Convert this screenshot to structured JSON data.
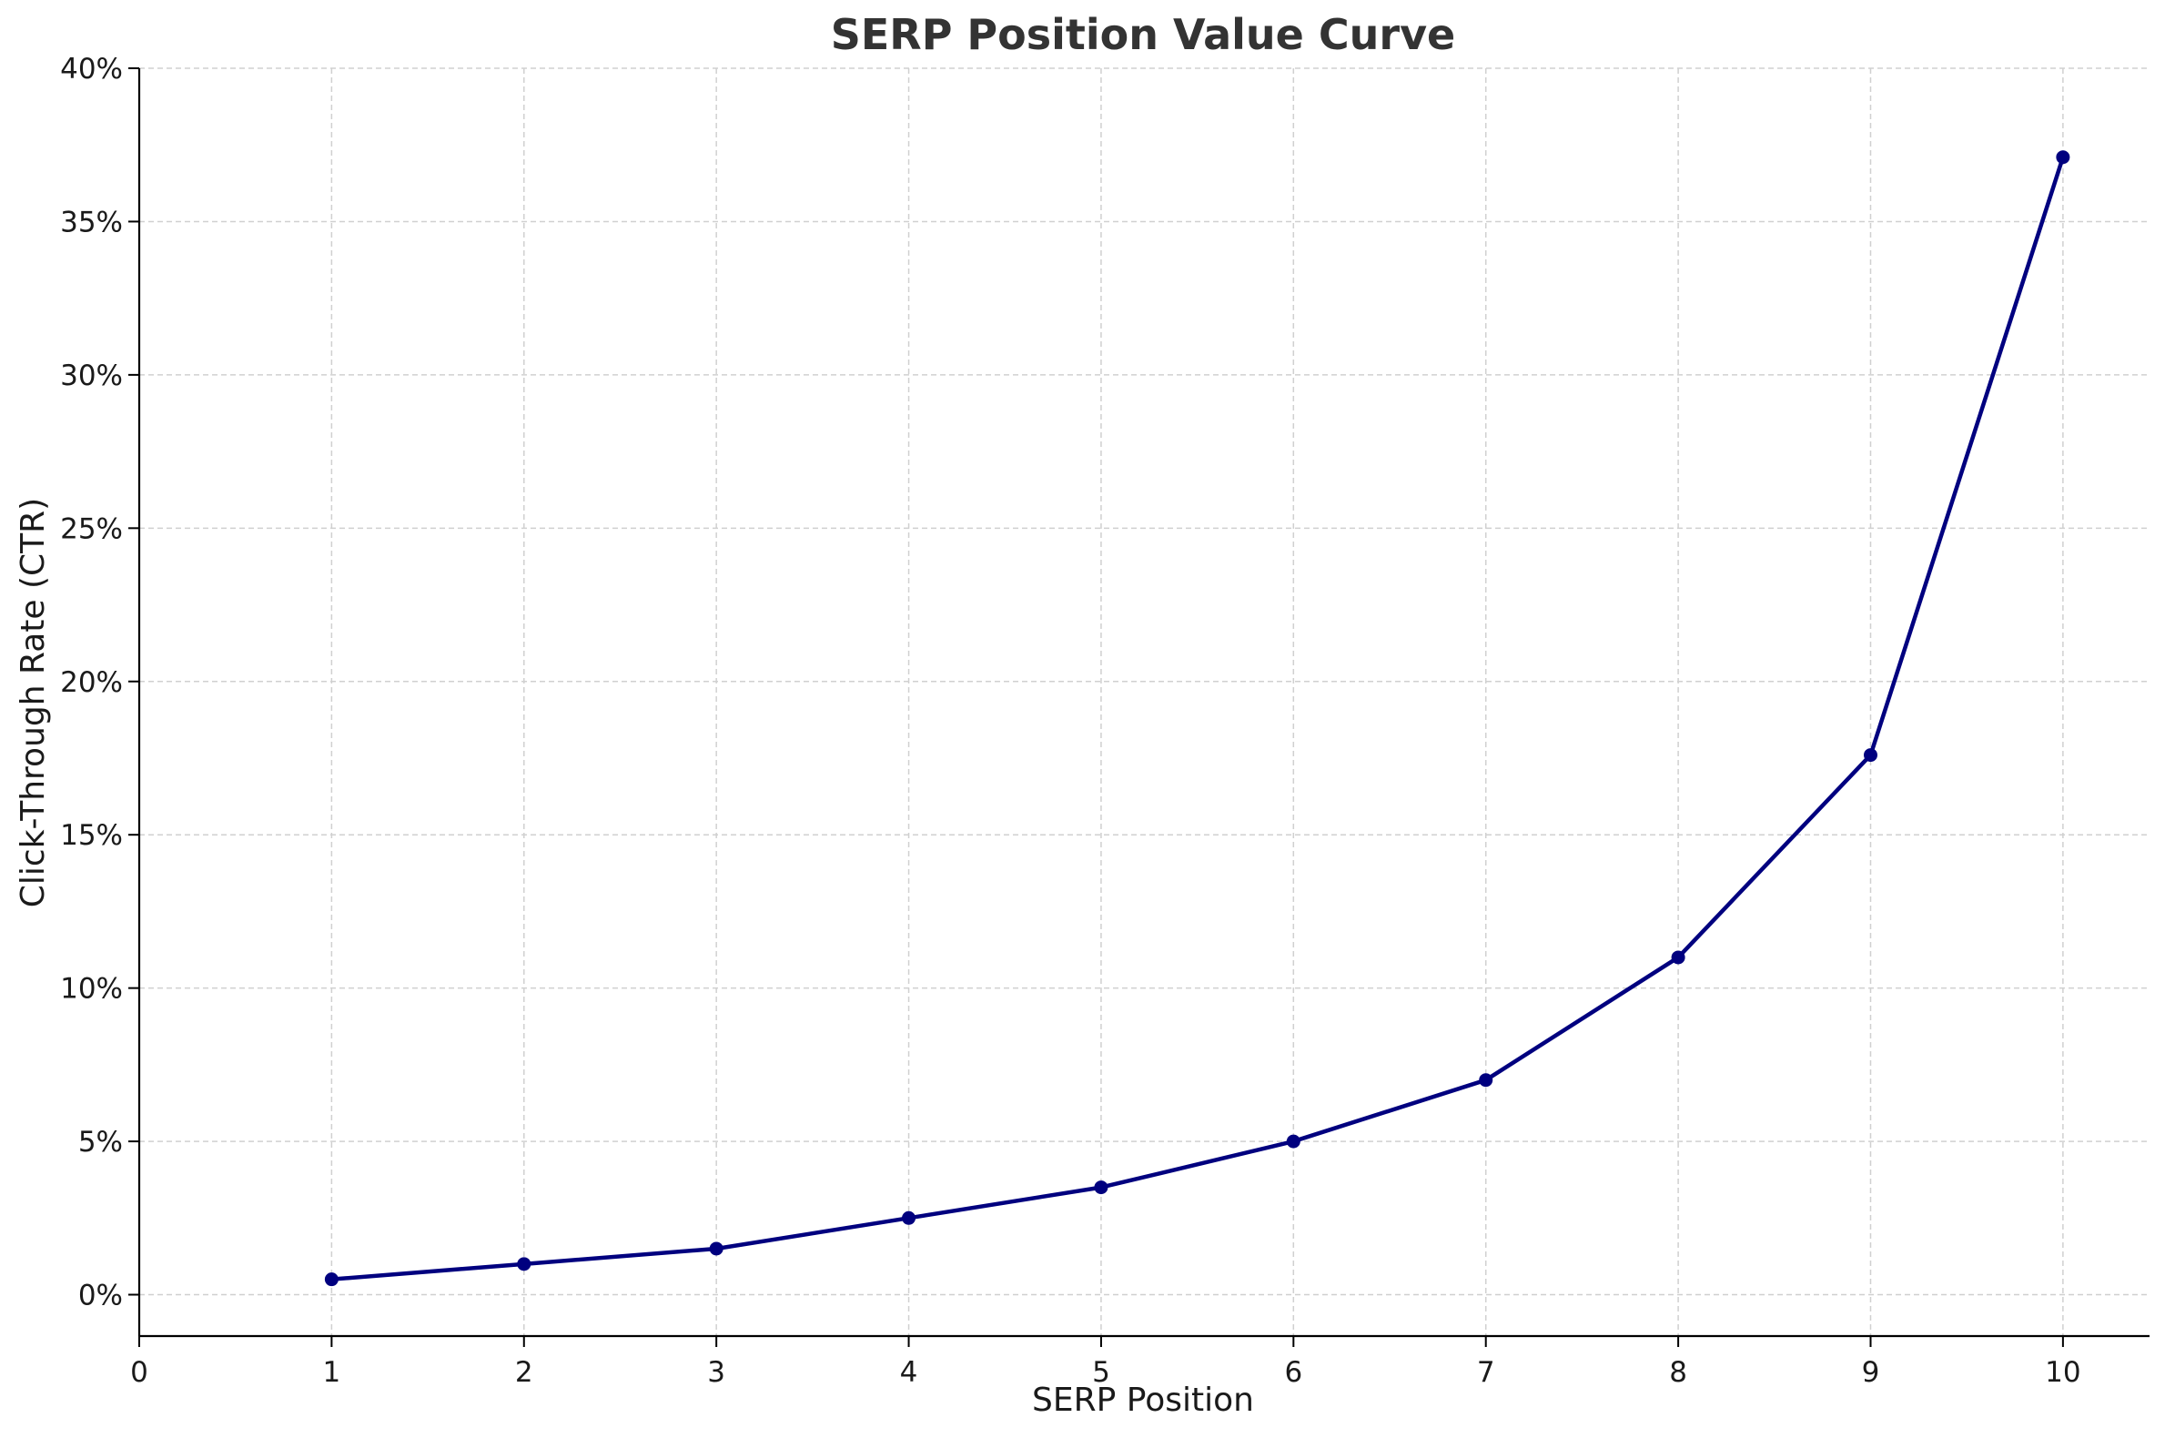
{
  "chart_data": {
    "type": "line",
    "title": "SERP Position Value Curve",
    "xlabel": "SERP Position",
    "ylabel": "Click-Through Rate (CTR)",
    "x": [
      1,
      2,
      3,
      4,
      5,
      6,
      7,
      8,
      9,
      10
    ],
    "series": [
      {
        "values": [
          0.5,
          1.0,
          1.5,
          2.5,
          3.5,
          5.0,
          7.0,
          11.0,
          17.6,
          37.1
        ]
      }
    ],
    "xlim": [
      0,
      10.45
    ],
    "ylim": [
      -1.35,
      40
    ],
    "x_ticks": [
      "0",
      "1",
      "2",
      "3",
      "4",
      "5",
      "6",
      "7",
      "8",
      "9",
      "10"
    ],
    "y_ticks": [
      "0%",
      "5%",
      "10%",
      "15%",
      "20%",
      "25%",
      "30%",
      "35%",
      "40%"
    ],
    "grid": true,
    "line_color": "#00007f",
    "grid_color": "#d0d0d0",
    "axis_color": "#000000",
    "text_color": "#1a1a1a",
    "title_color": "#333333"
  }
}
